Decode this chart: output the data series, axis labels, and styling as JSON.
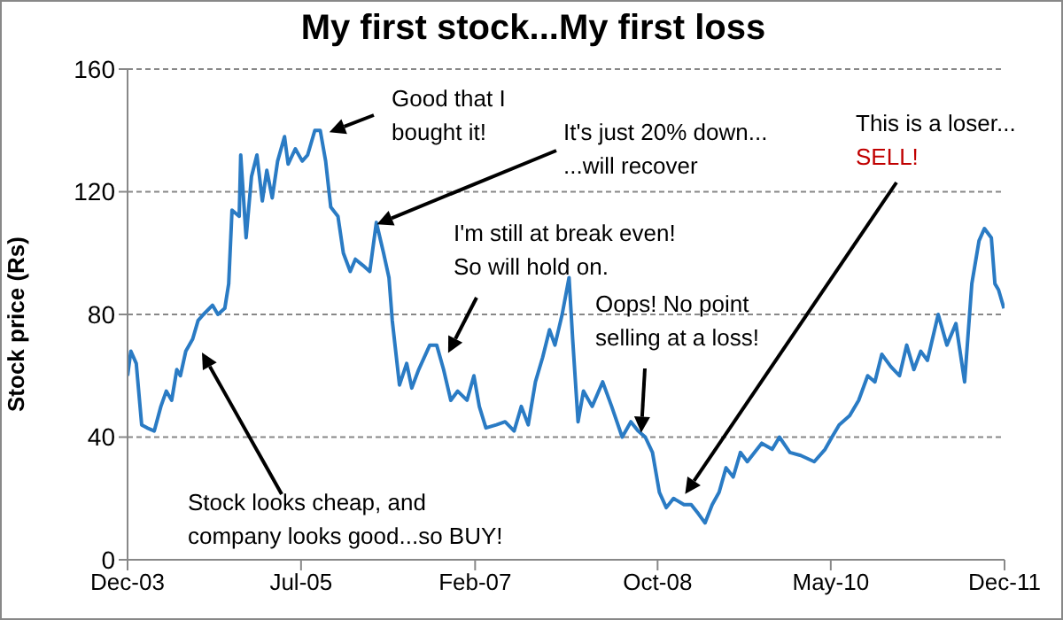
{
  "chart_data": {
    "type": "line",
    "title": "My first stock...My first loss",
    "ylabel": "Stock price (Rs)",
    "x": [
      "2003-12-01",
      "2003-12-12",
      "2003-12-30",
      "2004-01-17",
      "2004-02-04",
      "2004-02-28",
      "2004-03-21",
      "2004-04-08",
      "2004-04-26",
      "2004-05-13",
      "2004-05-25",
      "2004-06-12",
      "2004-07-05",
      "2004-07-23",
      "2004-08-10",
      "2004-09-09",
      "2004-09-27",
      "2004-10-20",
      "2004-11-02",
      "2004-11-13",
      "2004-12-07",
      "2004-12-12",
      "2004-12-30",
      "2005-01-17",
      "2005-02-04",
      "2005-02-22",
      "2005-03-09",
      "2005-03-27",
      "2005-04-14",
      "2005-05-07",
      "2005-05-19",
      "2005-06-12",
      "2005-07-05",
      "2005-07-23",
      "2005-08-16",
      "2005-09-03",
      "2005-09-21",
      "2005-10-08",
      "2005-11-01",
      "2005-11-19",
      "2005-12-12",
      "2005-12-29",
      "2006-01-23",
      "2006-02-15",
      "2006-03-09",
      "2006-04-02",
      "2006-04-20",
      "2006-05-01",
      "2006-05-25",
      "2006-06-18",
      "2006-07-05",
      "2006-07-28",
      "2006-09-03",
      "2006-09-26",
      "2006-10-19",
      "2006-11-12",
      "2006-12-05",
      "2007-01-05",
      "2007-01-28",
      "2007-02-15",
      "2007-03-09",
      "2007-04-13",
      "2007-05-12",
      "2007-06-11",
      "2007-07-05",
      "2007-07-28",
      "2007-08-21",
      "2007-09-14",
      "2007-10-07",
      "2007-10-25",
      "2007-11-18",
      "2007-12-11",
      "2007-12-23",
      "2008-01-10",
      "2008-01-28",
      "2008-02-26",
      "2008-04-01",
      "2008-05-01",
      "2008-06-05",
      "2008-07-04",
      "2008-07-28",
      "2008-08-21",
      "2008-09-14",
      "2008-10-07",
      "2008-10-30",
      "2008-11-23",
      "2008-12-28",
      "2009-01-21",
      "2009-02-14",
      "2009-03-08",
      "2009-04-01",
      "2009-04-24",
      "2009-05-17",
      "2009-06-10",
      "2009-07-04",
      "2009-07-27",
      "2009-09-13",
      "2009-10-18",
      "2009-11-11",
      "2009-12-16",
      "2010-01-21",
      "2010-03-07",
      "2010-04-12",
      "2010-05-05",
      "2010-05-29",
      "2010-07-03",
      "2010-08-02",
      "2010-09-01",
      "2010-09-25",
      "2010-10-18",
      "2010-11-17",
      "2010-12-16",
      "2011-01-09",
      "2011-02-02",
      "2011-02-25",
      "2011-03-19",
      "2011-04-24",
      "2011-05-23",
      "2011-06-22",
      "2011-07-21",
      "2011-08-14",
      "2011-09-07",
      "2011-09-25",
      "2011-10-18",
      "2011-10-30",
      "2011-11-11",
      "2011-11-29"
    ],
    "values": [
      60,
      68,
      64,
      44,
      43,
      42,
      50,
      55,
      52,
      62,
      60,
      68,
      72,
      78,
      80,
      83,
      80,
      82,
      90,
      114,
      112,
      132,
      105,
      125,
      132,
      117,
      127,
      118,
      130,
      138,
      129,
      134,
      130,
      132,
      140,
      140,
      130,
      115,
      112,
      100,
      94,
      98,
      96,
      94,
      110,
      100,
      92,
      78,
      57,
      64,
      56,
      62,
      70,
      70,
      62,
      52,
      55,
      52,
      60,
      50,
      43,
      44,
      45,
      42,
      50,
      44,
      58,
      66,
      75,
      70,
      80,
      92,
      72,
      45,
      55,
      50,
      58,
      50,
      40,
      45,
      42,
      40,
      35,
      22,
      17,
      20,
      18,
      18,
      15,
      12,
      18,
      22,
      30,
      27,
      35,
      32,
      38,
      36,
      40,
      35,
      34,
      32,
      36,
      40,
      44,
      47,
      52,
      60,
      58,
      67,
      63,
      60,
      70,
      62,
      68,
      65,
      80,
      70,
      77,
      58,
      90,
      104,
      108,
      105,
      90,
      88,
      82
    ],
    "color": "#2a7bc4",
    "xlim": [
      "2003-12",
      "2011-12"
    ],
    "xticks": [
      {
        "value": "2003-12",
        "label": "Dec-03"
      },
      {
        "value": "2005-07",
        "label": "Jul-05"
      },
      {
        "value": "2007-02",
        "label": "Feb-07"
      },
      {
        "value": "2008-10",
        "label": "Oct-08"
      },
      {
        "value": "2010-05",
        "label": "May-10"
      },
      {
        "value": "2011-12",
        "label": "Dec-11"
      }
    ],
    "ylim": [
      0,
      160
    ],
    "yticks": [
      0,
      40,
      80,
      120,
      160
    ],
    "grid": "y",
    "legend": false,
    "marker": "none",
    "line_style": "solid",
    "annotations": [
      "Stock looks cheap, and\ncompany looks good...so BUY!",
      {
        "text": "Good that I\nbought it!",
        "x": "2005-10-02",
        "y": 140
      },
      {
        "text": "It's just 20% down...\n...will recover",
        "x": "2006-03-09",
        "y": 110
      },
      {
        "text": "I'm still at break even!\nSo will hold on.",
        "x": "2006-11-01",
        "y": 68
      },
      {
        "text": "Oops! No point\nselling at a loss!",
        "x": "2008-08-04",
        "y": 42
      },
      {
        "text": "This is a loser...\nSELL!",
        "x": "2008-12-28",
        "y": 22
      }
    ]
  }
}
